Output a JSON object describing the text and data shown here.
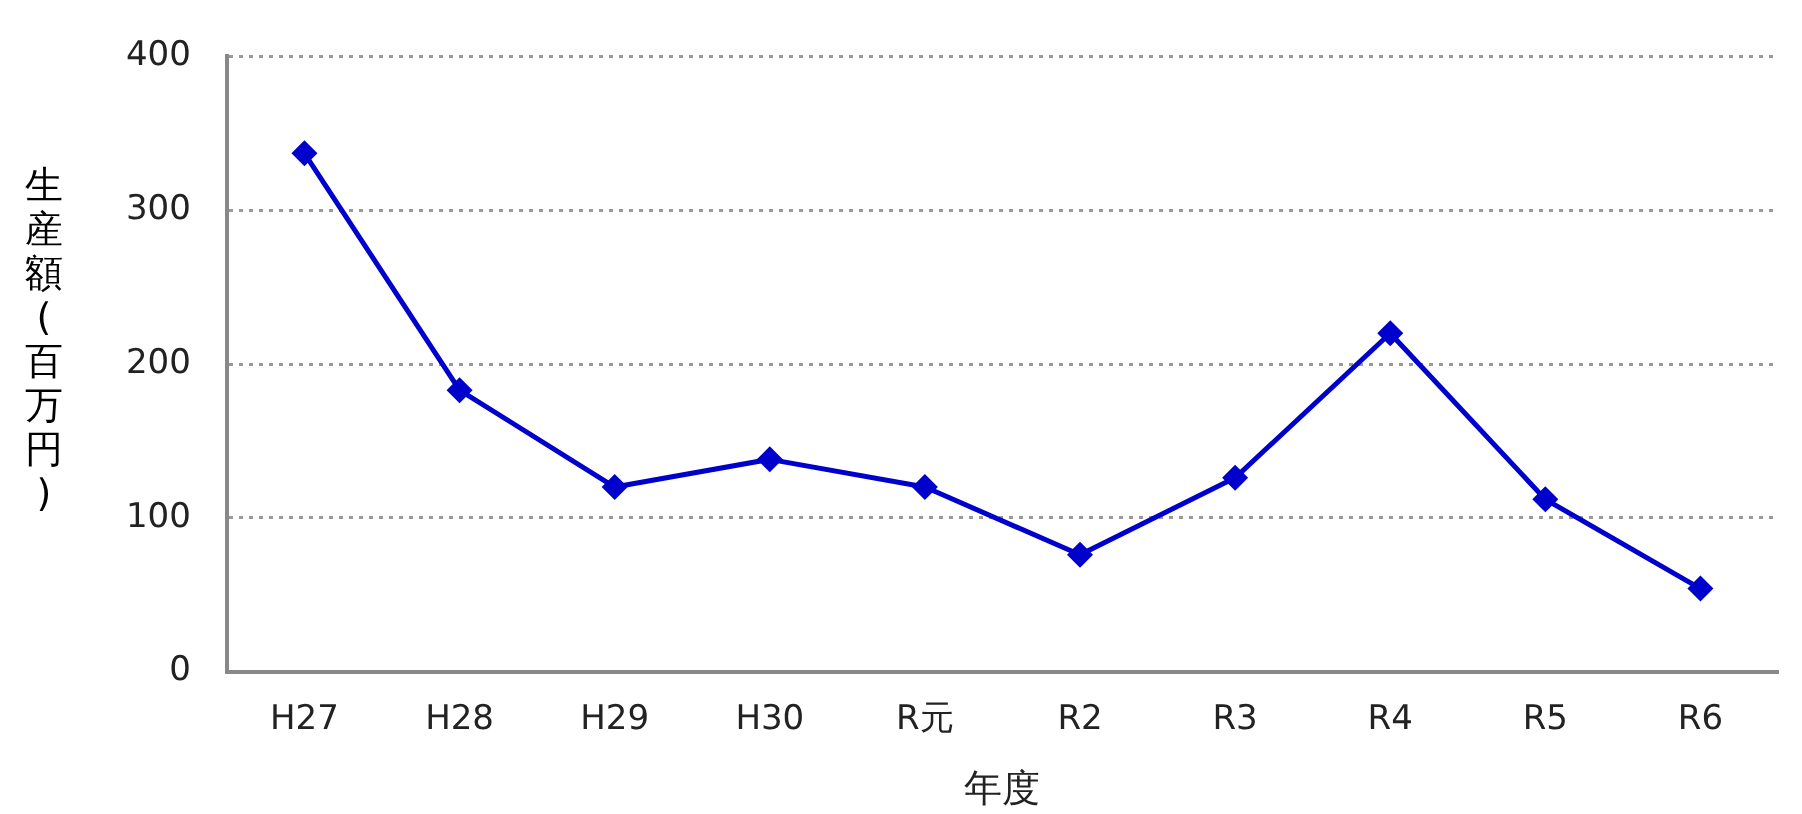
{
  "chart_data": {
    "type": "line",
    "xlabel": "年度",
    "ylabel": "生産額(百万円)",
    "categories": [
      "H27",
      "H28",
      "H29",
      "H30",
      "R元",
      "R2",
      "R3",
      "R4",
      "R5",
      "R6"
    ],
    "series": [
      {
        "color": "#0000cc",
        "values": [
          337,
          183,
          120,
          138,
          120,
          76,
          126,
          220,
          112,
          54
        ]
      }
    ],
    "ylim": [
      0,
      400
    ],
    "yticks": [
      0,
      100,
      200,
      300,
      400
    ],
    "grid": "y",
    "legend": false,
    "marker": "diamond",
    "line_style": "solid"
  }
}
